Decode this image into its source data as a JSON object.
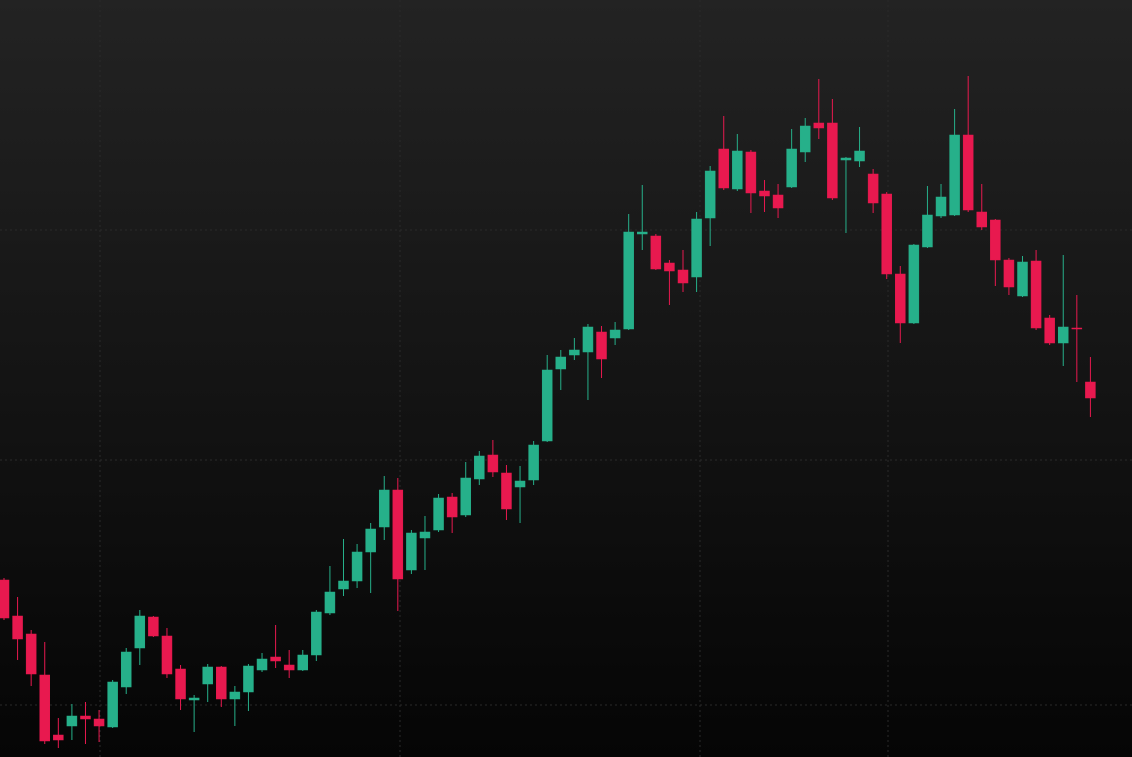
{
  "chart_data": {
    "type": "candlestick",
    "up_color": "#26b08a",
    "down_color": "#e8194f",
    "ylim": [
      0,
      757
    ],
    "open": [
      177,
      141,
      123,
      82,
      22,
      31,
      41,
      38,
      30,
      70,
      109,
      140,
      121,
      88,
      57,
      73,
      90,
      58,
      65,
      87,
      100,
      92,
      87,
      102,
      144,
      168,
      176,
      205,
      230,
      267,
      187,
      219,
      227,
      260,
      242,
      278,
      302,
      284,
      270,
      277,
      316,
      388,
      402,
      405,
      425,
      419,
      428,
      523,
      521,
      494,
      487,
      480,
      539,
      608,
      568,
      605,
      566,
      562,
      570,
      605,
      634,
      634,
      597,
      596,
      583,
      563,
      483,
      434,
      510,
      541,
      542,
      622,
      545,
      537,
      497,
      461,
      496,
      439,
      414,
      429,
      375
    ],
    "high": [
      179,
      160,
      127,
      115,
      39,
      53,
      55,
      47,
      77,
      109,
      147,
      141,
      129,
      92,
      62,
      93,
      91,
      71,
      93,
      104,
      132,
      107,
      107,
      147,
      191,
      218,
      213,
      234,
      281,
      279,
      227,
      241,
      263,
      264,
      295,
      306,
      317,
      292,
      291,
      316,
      402,
      407,
      419,
      433,
      431,
      435,
      543,
      572,
      523,
      497,
      507,
      545,
      591,
      641,
      623,
      607,
      577,
      573,
      628,
      639,
      678,
      658,
      600,
      630,
      588,
      565,
      491,
      513,
      571,
      573,
      648,
      681,
      573,
      538,
      499,
      501,
      507,
      442,
      502,
      462,
      400
    ],
    "low": [
      137,
      97,
      71,
      13,
      9,
      17,
      13,
      15,
      29,
      63,
      92,
      120,
      79,
      47,
      25,
      55,
      50,
      31,
      46,
      85,
      89,
      79,
      86,
      96,
      142,
      161,
      169,
      164,
      217,
      146,
      183,
      187,
      225,
      224,
      240,
      272,
      280,
      237,
      234,
      272,
      315,
      367,
      397,
      357,
      379,
      412,
      427,
      507,
      487,
      452,
      465,
      465,
      511,
      567,
      566,
      544,
      545,
      539,
      569,
      595,
      618,
      557,
      524,
      590,
      544,
      478,
      414,
      433,
      509,
      539,
      541,
      545,
      527,
      471,
      462,
      460,
      427,
      412,
      391,
      375,
      340
    ],
    "close": [
      139,
      118,
      83,
      16,
      17,
      41,
      38,
      31,
      75,
      105,
      141,
      121,
      83,
      58,
      59,
      90,
      58,
      65,
      91,
      98,
      96,
      87,
      102,
      145,
      165,
      176,
      205,
      228,
      267,
      178,
      224,
      225,
      259,
      240,
      279,
      301,
      285,
      248,
      276,
      312,
      387,
      400,
      407,
      430,
      398,
      427,
      525,
      525,
      488,
      486,
      474,
      538,
      586,
      569,
      606,
      564,
      561,
      549,
      608,
      631,
      629,
      559,
      599,
      606,
      554,
      483,
      434,
      512,
      542,
      560,
      622,
      547,
      530,
      497,
      470,
      495,
      429,
      414,
      430,
      428,
      359
    ]
  }
}
